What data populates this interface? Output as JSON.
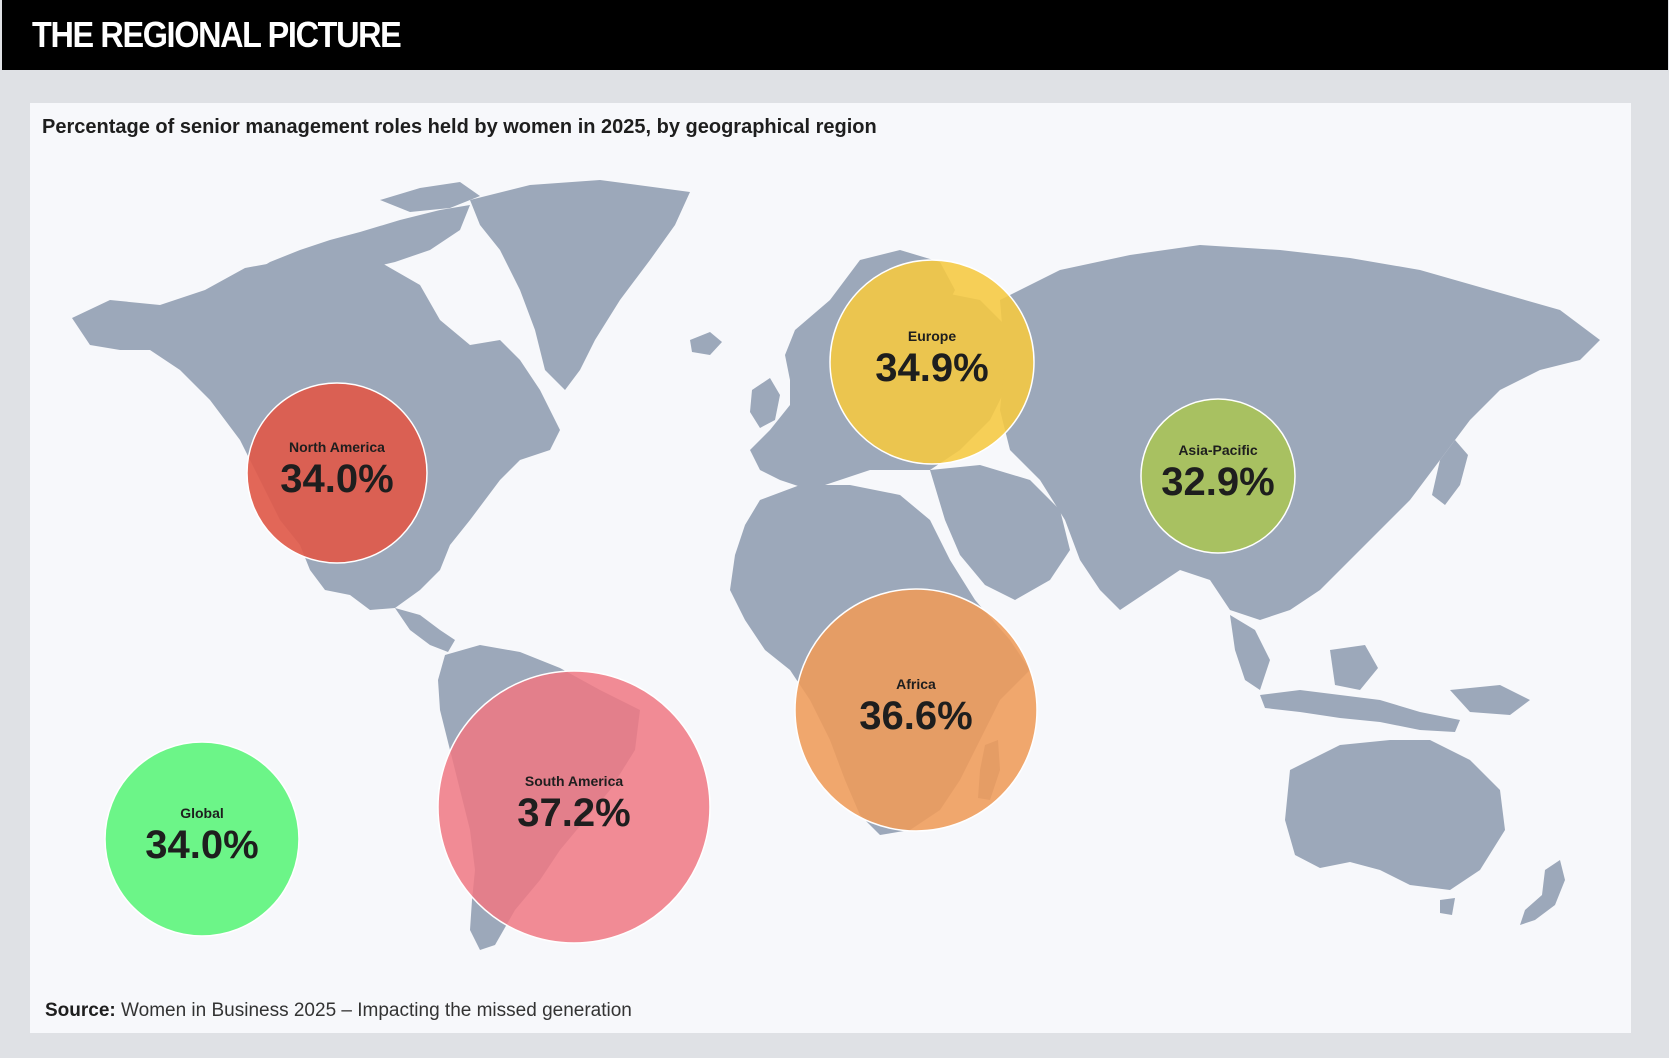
{
  "header": {
    "title": "THE REGIONAL PICTURE"
  },
  "subtitle": "Percentage of senior management roles held by women in 2025, by geographical region",
  "source": {
    "label": "Source:",
    "text": "Women in Business 2025 – Impacting the missed generation"
  },
  "colors": {
    "land": "#9ca8ba",
    "panel": "#f7f8fb",
    "header": "#000000"
  },
  "regions": [
    {
      "id": "north-america",
      "label": "North America",
      "value": 34.0,
      "display": "34.0%",
      "color": "#e05a4a",
      "opacity": 0.92
    },
    {
      "id": "europe",
      "label": "Europe",
      "value": 34.9,
      "display": "34.9%",
      "color": "#f6c840",
      "opacity": 0.88
    },
    {
      "id": "asia-pacific",
      "label": "Asia-Pacific",
      "value": 32.9,
      "display": "32.9%",
      "color": "#a9c25c",
      "opacity": 0.95
    },
    {
      "id": "africa",
      "label": "Africa",
      "value": 36.6,
      "display": "36.6%",
      "color": "#ef9b59",
      "opacity": 0.88
    },
    {
      "id": "south-america",
      "label": "South America",
      "value": 37.2,
      "display": "37.2%",
      "color": "#f07882",
      "opacity": 0.85
    },
    {
      "id": "global",
      "label": "Global",
      "value": 34.0,
      "display": "34.0%",
      "color": "#6cf588",
      "opacity": 1
    }
  ]
}
